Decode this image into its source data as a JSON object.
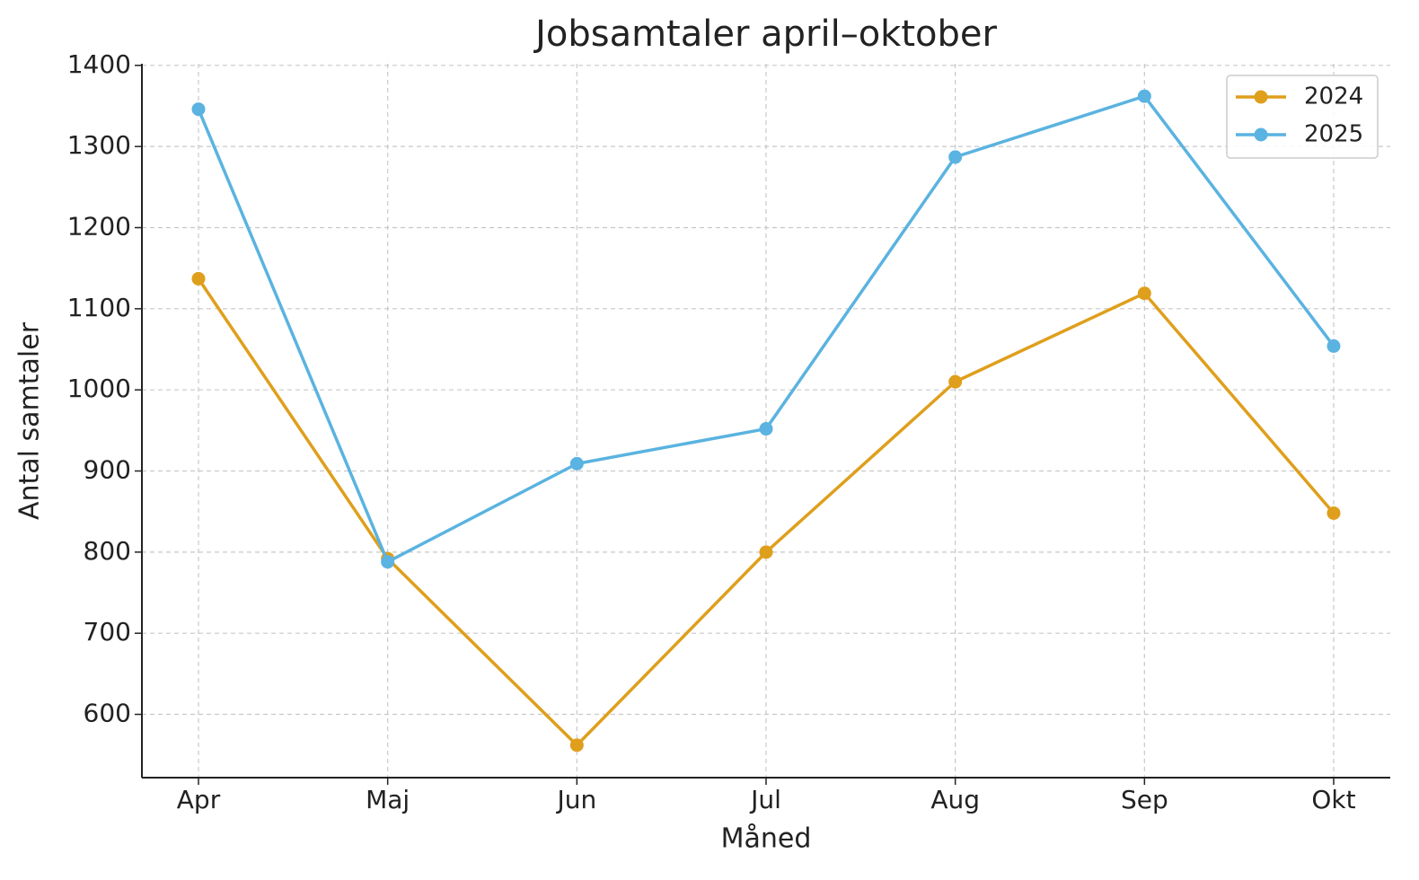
{
  "chart_data": {
    "type": "line",
    "title": "Jobsamtaler april–oktober",
    "xlabel": "Måned",
    "ylabel": "Antal samtaler",
    "categories": [
      "Apr",
      "Maj",
      "Jun",
      "Jul",
      "Aug",
      "Sep",
      "Okt"
    ],
    "series": [
      {
        "name": "2024",
        "color": "#df9f1c",
        "values": [
          1137,
          792,
          562,
          800,
          1010,
          1119,
          848
        ]
      },
      {
        "name": "2025",
        "color": "#5ab3e0",
        "values": [
          1346,
          788,
          909,
          952,
          1287,
          1362,
          1054
        ]
      }
    ],
    "ylim": [
      522,
      1402
    ],
    "yticks": [
      600,
      700,
      800,
      900,
      1000,
      1100,
      1200,
      1300,
      1400
    ],
    "grid": true,
    "legend": "upper right"
  }
}
